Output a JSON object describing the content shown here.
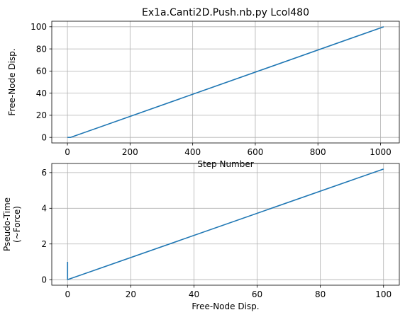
{
  "chart_data": [
    {
      "type": "line",
      "title": "Ex1a.Canti2D.Push.nb.py Lcol480",
      "xlabel": "Step Number",
      "ylabel": "Free-Node Disp.",
      "xlim": [
        -50,
        1060
      ],
      "ylim": [
        -5,
        105
      ],
      "xticks": [
        0,
        200,
        400,
        600,
        800,
        1000
      ],
      "yticks": [
        0,
        20,
        40,
        60,
        80,
        100
      ],
      "grid": true,
      "color": "#1f77b4",
      "series": [
        {
          "x": [
            0,
            10,
            1010
          ],
          "y": [
            0,
            0,
            100
          ]
        }
      ]
    },
    {
      "type": "line",
      "title": "",
      "xlabel": "Free-Node Disp.",
      "ylabel": "Pseudo-Time\n(~Force)",
      "xlim": [
        -5,
        105
      ],
      "ylim": [
        -0.31,
        6.51
      ],
      "xticks": [
        0,
        20,
        40,
        60,
        80,
        100
      ],
      "yticks": [
        0,
        2,
        4,
        6
      ],
      "grid": true,
      "color": "#1f77b4",
      "series": [
        {
          "x": [
            0,
            0,
            0,
            100
          ],
          "y": [
            1.0,
            0.0,
            0.0,
            6.2
          ]
        }
      ]
    }
  ]
}
